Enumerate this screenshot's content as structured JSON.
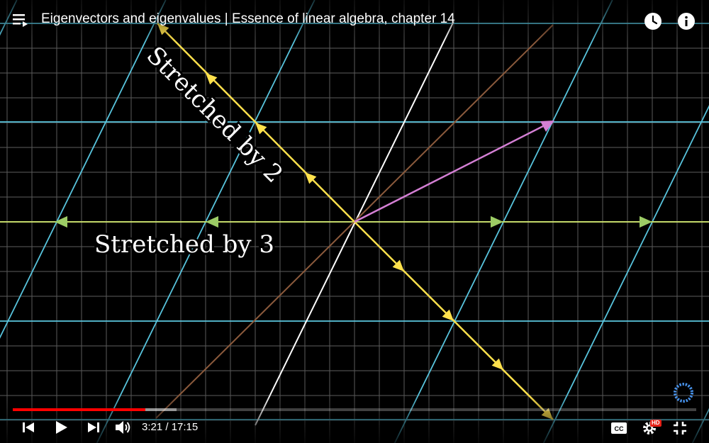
{
  "video": {
    "title": "Eigenvectors and eigenvalues | Essence of linear algebra, chapter 14"
  },
  "scene": {
    "label_diagonal": "Stretched by 2",
    "label_horizontal": "Stretched by 3",
    "colors": {
      "grid_faint": "#5a5a5a",
      "grid_blue": "#58c4dd",
      "x_axis_green": "#c4d96a",
      "y_axis_white": "#ffffff",
      "yellow_vectors": "#ffe14c",
      "green_vectors": "#9ccc65",
      "pink_vector": "#d47fd4",
      "brown_line": "#8b5a3c"
    }
  },
  "controls": {
    "current_time": "3:21",
    "duration": "17:15",
    "time_display": "3:21 / 17:15",
    "progress_fraction": 0.194,
    "buffered_fraction": 0.24,
    "hd_badge": "HD",
    "colors": {
      "progress_played": "#ff0000",
      "hd_badge": "#e62117"
    }
  },
  "icons": {
    "playlist": "playlist-icon",
    "watch_later": "clock-icon",
    "info": "info-icon",
    "prev": "skip-previous-icon",
    "play": "play-icon",
    "next": "skip-next-icon",
    "volume": "volume-icon",
    "captions": "captions-icon",
    "settings": "gear-icon",
    "fullscreen_exit": "fullscreen-exit-icon",
    "loading": "loading-spinner-icon"
  }
}
